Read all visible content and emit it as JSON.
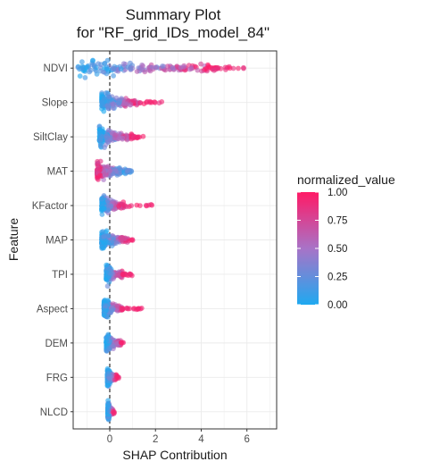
{
  "chart_data": {
    "type": "scatter",
    "title_line1": "Summary Plot",
    "title_line2": "for \"RF_grid_IDs_model_84\"",
    "xlabel": "SHAP Contribution",
    "ylabel": "Feature",
    "xlim": [
      -1.6,
      7.3
    ],
    "x_ticks": [
      "0",
      "2",
      "4",
      "6"
    ],
    "x_tick_values": [
      0,
      2,
      4,
      6
    ],
    "features": [
      "NDVI",
      "Slope",
      "SiltClay",
      "MAT",
      "KFactor",
      "MAP",
      "TPI",
      "Aspect",
      "DEM",
      "FRG",
      "NLCD"
    ],
    "feature_distributions": [
      {
        "name": "NDVI",
        "min": -1.5,
        "max": 6.1,
        "core": [
          -1.4,
          4.7
        ],
        "high_side": "positive"
      },
      {
        "name": "Slope",
        "min": -0.4,
        "max": 2.3,
        "core": [
          -0.35,
          1.3
        ],
        "high_side": "positive"
      },
      {
        "name": "SiltClay",
        "min": -0.5,
        "max": 1.5,
        "core": [
          -0.45,
          1.0
        ],
        "high_side": "positive"
      },
      {
        "name": "MAT",
        "min": -0.6,
        "max": 1.0,
        "core": [
          -0.55,
          0.75
        ],
        "high_side": "negative"
      },
      {
        "name": "KFactor",
        "min": -0.4,
        "max": 2.0,
        "core": [
          -0.35,
          0.6
        ],
        "high_side": "positive"
      },
      {
        "name": "MAP",
        "min": -0.4,
        "max": 1.0,
        "core": [
          -0.35,
          0.8
        ],
        "high_side": "positive"
      },
      {
        "name": "TPI",
        "min": -0.2,
        "max": 1.0,
        "core": [
          -0.15,
          0.55
        ],
        "high_side": "positive"
      },
      {
        "name": "Aspect",
        "min": -0.3,
        "max": 1.6,
        "core": [
          -0.25,
          0.6
        ],
        "high_side": "positive"
      },
      {
        "name": "DEM",
        "min": -0.2,
        "max": 0.6,
        "core": [
          -0.15,
          0.5
        ],
        "high_side": "positive"
      },
      {
        "name": "FRG",
        "min": -0.1,
        "max": 0.4,
        "core": [
          -0.1,
          0.3
        ],
        "high_side": "positive"
      },
      {
        "name": "NLCD",
        "min": -0.1,
        "max": 0.2,
        "core": [
          -0.08,
          0.15
        ],
        "high_side": "positive"
      }
    ],
    "legend": {
      "title": "normalized_value",
      "labels": [
        "1.00",
        "0.75",
        "0.50",
        "0.25",
        "0.00"
      ],
      "values": [
        1.0,
        0.75,
        0.5,
        0.25,
        0.0
      ],
      "color_low": "#1fa9f0",
      "color_mid": "#a873c7",
      "color_high": "#ff1a66"
    },
    "grid": true,
    "zero_line": "dashed"
  }
}
